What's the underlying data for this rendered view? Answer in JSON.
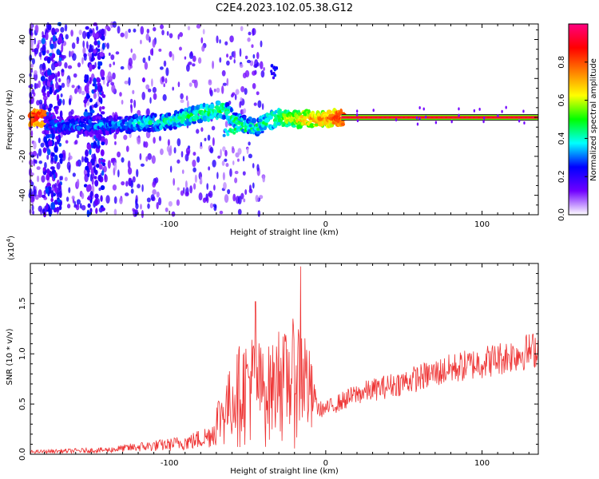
{
  "figure_title": "C2E4.2023.102.05.38.G12",
  "chart_data": [
    {
      "type": "heatmap",
      "xlabel": "Height of straight line (km)",
      "ylabel": "Frequency (Hz)",
      "xlim": [
        -189,
        136
      ],
      "ylim": [
        -50,
        48
      ],
      "x_ticks": [
        -100,
        0,
        100
      ],
      "y_ticks": [
        -40,
        -20,
        0,
        20,
        40
      ],
      "colorbar": {
        "label": "Normalized spectral amplitude",
        "range": [
          0.0,
          1.0
        ],
        "ticks": [
          0.0,
          0.2,
          0.4,
          0.6,
          0.8
        ],
        "colormap": [
          "#ffffff",
          "#7000ff",
          "#0000ff",
          "#00ffff",
          "#00ff00",
          "#ffff00",
          "#ff7f00",
          "#ff0000",
          "#ff0080"
        ]
      },
      "ridge": [
        {
          "x": -180,
          "f": -4,
          "a": 0.35
        },
        {
          "x": -160,
          "f": -4,
          "a": 0.4
        },
        {
          "x": -140,
          "f": -4,
          "a": 0.38
        },
        {
          "x": -120,
          "f": -3,
          "a": 0.45
        },
        {
          "x": -100,
          "f": -2,
          "a": 0.5
        },
        {
          "x": -80,
          "f": 2,
          "a": 0.55
        },
        {
          "x": -65,
          "f": 4,
          "a": 0.55
        },
        {
          "x": -55,
          "f": -3,
          "a": 0.5
        },
        {
          "x": -45,
          "f": -5,
          "a": 0.5
        },
        {
          "x": -30,
          "f": 0,
          "a": 0.6
        },
        {
          "x": -15,
          "f": -1,
          "a": 0.75
        },
        {
          "x": 0,
          "f": -1,
          "a": 0.8
        },
        {
          "x": 10,
          "f": 0,
          "a": 0.95
        },
        {
          "x": 136,
          "f": 0,
          "a": 0.95
        }
      ]
    },
    {
      "type": "line",
      "xlabel": "Height of straight line (km)",
      "ylabel": "SNR (10 * v/v)",
      "y_multiplier": "(x10",
      "y_multiplier_exp": "4",
      "y_multiplier_close": ")",
      "xlim": [
        -189,
        136
      ],
      "ylim": [
        0.0,
        1.9
      ],
      "x_ticks": [
        -100,
        0,
        100
      ],
      "y_ticks": [
        0.0,
        0.5,
        1.0,
        1.5
      ],
      "line_color": "#ee3333",
      "envelope": [
        {
          "x": -189,
          "y": 0.04
        },
        {
          "x": -140,
          "y": 0.07
        },
        {
          "x": -120,
          "y": 0.12
        },
        {
          "x": -100,
          "y": 0.16
        },
        {
          "x": -85,
          "y": 0.22
        },
        {
          "x": -75,
          "y": 0.3
        },
        {
          "x": -65,
          "y": 0.55
        },
        {
          "x": -55,
          "y": 0.85
        },
        {
          "x": -45,
          "y": 0.95
        },
        {
          "x": -40,
          "y": 0.8
        },
        {
          "x": -30,
          "y": 0.9
        },
        {
          "x": -20,
          "y": 1.0
        },
        {
          "x": -15,
          "y": 1.1
        },
        {
          "x": -5,
          "y": 0.45
        },
        {
          "x": 0,
          "y": 0.45
        },
        {
          "x": 20,
          "y": 0.6
        },
        {
          "x": 50,
          "y": 0.72
        },
        {
          "x": 80,
          "y": 0.85
        },
        {
          "x": 110,
          "y": 0.95
        },
        {
          "x": 136,
          "y": 1.05
        }
      ],
      "peaks": [
        {
          "x": -45,
          "y": 1.52
        },
        {
          "x": -30,
          "y": 1.22
        },
        {
          "x": -21,
          "y": 1.35
        },
        {
          "x": -16,
          "y": 1.87
        }
      ]
    }
  ]
}
